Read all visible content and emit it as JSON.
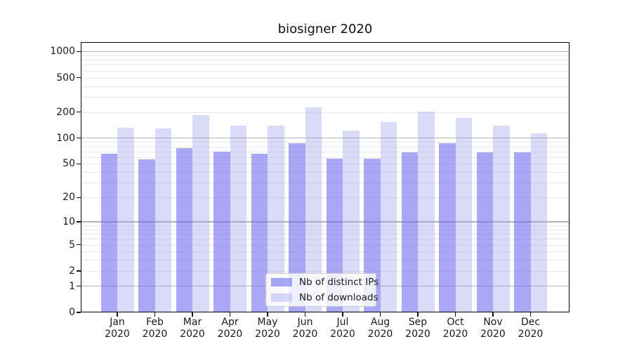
{
  "chart_data": {
    "type": "bar",
    "title": "biosigner 2020",
    "x": [
      "Jan",
      "Feb",
      "Mar",
      "Apr",
      "May",
      "Jun",
      "Jul",
      "Aug",
      "Sep",
      "Oct",
      "Nov",
      "Dec"
    ],
    "x_year_suffix": "2020",
    "series": [
      {
        "name": "Nb of distinct IPs",
        "values": [
          66,
          56,
          76,
          69,
          66,
          87,
          58,
          58,
          68,
          87,
          68,
          68
        ]
      },
      {
        "name": "Nb of downloads",
        "values": [
          131,
          129,
          185,
          140,
          139,
          228,
          123,
          152,
          201,
          171,
          139,
          113
        ]
      }
    ],
    "yscale": "symlog (log1p)",
    "y_ticks": [
      1000,
      500,
      200,
      100,
      50,
      20,
      10,
      5,
      2,
      1,
      0
    ],
    "ylim": [
      0,
      1280
    ],
    "grid": "horizontal major+minor",
    "legend_position": "lower center"
  },
  "colors": {
    "ips_bar": "#6e6ef0",
    "ips_bar_alpha": 0.6,
    "downloads_bar": "#9a9af0",
    "downloads_bar_alpha": 0.37,
    "grid_major": "#b2b2b2",
    "grid_minor": "#e8e8e8",
    "spine": "#000000",
    "text": "#1a1a1a",
    "legend_border": "#cccccc"
  }
}
